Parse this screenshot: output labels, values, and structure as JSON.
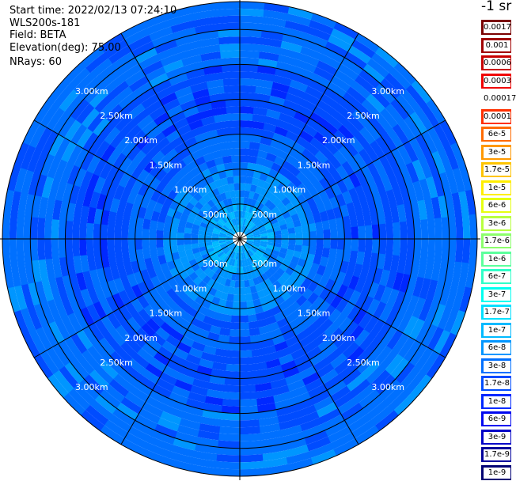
{
  "info": {
    "start_time": "Start time: 2022/02/13 07:24:10",
    "instrument": "WLS200s-181",
    "field": "Field: BETA",
    "elevation": "Elevation(deg): 75.00",
    "nrays": "NRays: 60"
  },
  "colorbar": {
    "unit_label": "-1 sr",
    "levels": [
      {
        "label": "0.0017",
        "color": "#7a0000"
      },
      {
        "label": "0.001",
        "color": "#a00000"
      },
      {
        "label": "0.0006",
        "color": "#c80000"
      },
      {
        "label": "0.0003",
        "color": "#f00000"
      },
      {
        "label": "0.00017",
        "color": "#ffffff"
      },
      {
        "label": "0.0001",
        "color": "#ff3000"
      },
      {
        "label": "6e-5",
        "color": "#ff6a00"
      },
      {
        "label": "3e-5",
        "color": "#ff9800"
      },
      {
        "label": "1.7e-5",
        "color": "#ffc400"
      },
      {
        "label": "1e-5",
        "color": "#ffee00"
      },
      {
        "label": "6e-6",
        "color": "#e6ff10"
      },
      {
        "label": "3e-6",
        "color": "#b8ff40"
      },
      {
        "label": "1.7e-6",
        "color": "#8cff6c"
      },
      {
        "label": "1e-6",
        "color": "#5cff9c"
      },
      {
        "label": "6e-7",
        "color": "#30ffc8"
      },
      {
        "label": "3e-7",
        "color": "#00fff0"
      },
      {
        "label": "1.7e-7",
        "color": "#00e0ff"
      },
      {
        "label": "1e-7",
        "color": "#00baff"
      },
      {
        "label": "6e-8",
        "color": "#0096ff"
      },
      {
        "label": "3e-8",
        "color": "#0070ff"
      },
      {
        "label": "1.7e-8",
        "color": "#004cff"
      },
      {
        "label": "1e-8",
        "color": "#0028ff"
      },
      {
        "label": "6e-9",
        "color": "#0008f0"
      },
      {
        "label": "3e-9",
        "color": "#0000c8"
      },
      {
        "label": "1.7e-9",
        "color": "#00009c"
      },
      {
        "label": "1e-9",
        "color": "#000074"
      }
    ]
  },
  "chart_data": {
    "type": "heatmap",
    "projection": "polar-ppi",
    "field": "BETA",
    "elevation_deg": 75.0,
    "n_rays": 60,
    "range_max_km": 3.4,
    "range_rings_km": [
      0.5,
      1.0,
      1.5,
      2.0,
      2.5,
      3.0
    ],
    "ring_labels": [
      "500m",
      "1.00km",
      "1.50km",
      "2.00km",
      "2.50km",
      "3.00km"
    ],
    "spoke_interval_deg": 30,
    "value_range": [
      1e-09,
      0.0017
    ],
    "radial_profile": [
      {
        "range_km": [
          0.1,
          0.5
        ],
        "typical_beta": "6e-8 to 1e-7"
      },
      {
        "range_km": [
          0.5,
          1.0
        ],
        "typical_beta": "3e-8 to 6e-8"
      },
      {
        "range_km": [
          1.0,
          2.5
        ],
        "typical_beta": "1e-8 to 3e-8"
      },
      {
        "range_km": [
          2.5,
          3.4
        ],
        "typical_beta": "1.7e-8 to 3e-8"
      }
    ]
  }
}
